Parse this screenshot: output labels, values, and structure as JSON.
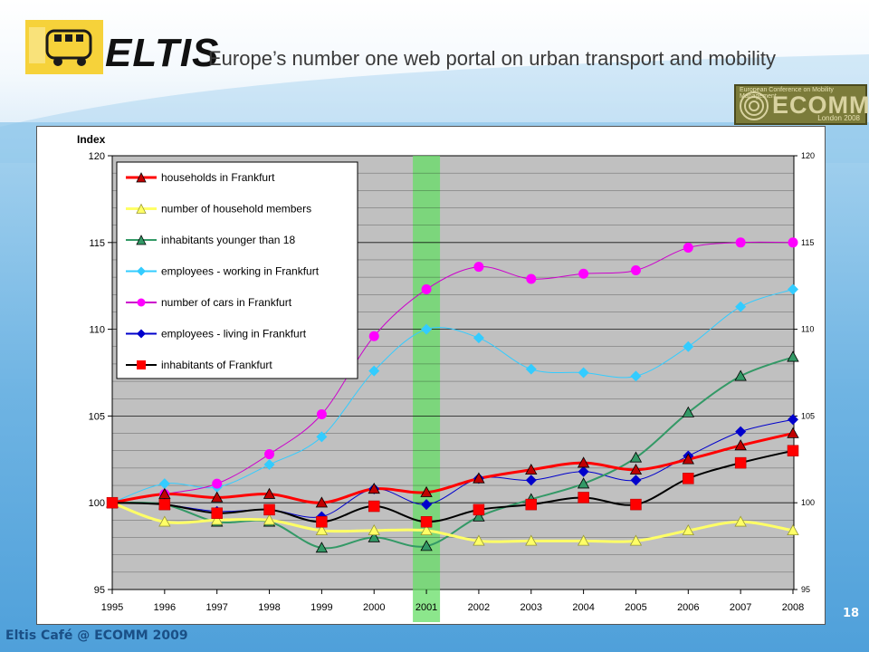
{
  "header": {
    "brand": "ELTIS",
    "tagline": "Europe’s number one web portal on urban transport and mobility",
    "logo_icon": "bus-icon"
  },
  "ecomm": {
    "name": "ECOMM",
    "top_text": "European Conference on Mobility Management",
    "sub_text": "London 2008"
  },
  "footer": {
    "text": "Eltis Café @ ECOMM 2009",
    "page_number": "18"
  },
  "colors": {
    "households": "#c00000",
    "household_members": "#ffff66",
    "young": "#339966",
    "employees_working": "#33ccff",
    "cars": "#cc00cc",
    "employees_living": "#0000cc",
    "inhabitants": "#000000",
    "highlight": "#66dd66"
  },
  "chart_data": {
    "type": "line",
    "title": "",
    "ylabel": "Index",
    "xlabel": "",
    "ylim": [
      95,
      120
    ],
    "yticks": [
      95,
      100,
      105,
      110,
      115,
      120
    ],
    "y2ticks": [
      95,
      100,
      105,
      110,
      115,
      120
    ],
    "grid": "horizontal minor",
    "legend_position": "top-left",
    "highlight_category": "2001",
    "categories": [
      "1995",
      "1996",
      "1997",
      "1998",
      "1999",
      "2000",
      "2001",
      "2002",
      "2003",
      "2004",
      "2005",
      "2006",
      "2007",
      "2008"
    ],
    "series": [
      {
        "key": "households",
        "name": "households in Frankfurt",
        "marker": "triangle",
        "color": "#c00000",
        "line": "#ff0000",
        "width": 3,
        "values": [
          100,
          100.5,
          100.3,
          100.5,
          100.0,
          100.8,
          100.6,
          101.4,
          101.9,
          102.3,
          101.9,
          102.5,
          103.3,
          104.0
        ]
      },
      {
        "key": "household_members",
        "name": "number of  household members",
        "marker": "triangle-open",
        "color": "#ffff66",
        "line": "#ffff66",
        "width": 3,
        "values": [
          100,
          98.9,
          99.0,
          99.0,
          98.4,
          98.4,
          98.4,
          97.8,
          97.8,
          97.8,
          97.8,
          98.4,
          98.9,
          98.4
        ]
      },
      {
        "key": "young",
        "name": "inhabitants younger than 18",
        "marker": "triangle",
        "color": "#339966",
        "line": "#339966",
        "width": 2,
        "values": [
          100,
          99.9,
          98.9,
          98.9,
          97.4,
          98.0,
          97.5,
          99.2,
          100.2,
          101.1,
          102.6,
          105.2,
          107.3,
          108.4
        ]
      },
      {
        "key": "employees_working",
        "name": "employees - working in Frankfurt",
        "marker": "diamond",
        "color": "#33ccff",
        "line": "#33ccff",
        "width": 1,
        "values": [
          100,
          101.1,
          100.9,
          102.2,
          103.8,
          107.6,
          110.0,
          109.5,
          107.7,
          107.5,
          107.3,
          109.0,
          111.3,
          112.3
        ]
      },
      {
        "key": "cars",
        "name": "number of cars  in Frankfurt",
        "marker": "circle",
        "color": "#ff00ff",
        "line": "#cc00cc",
        "width": 1,
        "values": [
          100,
          100.5,
          101.1,
          102.8,
          105.1,
          109.6,
          112.3,
          113.6,
          112.9,
          113.2,
          113.4,
          114.7,
          115.0,
          115.0
        ]
      },
      {
        "key": "employees_living",
        "name": "employees - living in Frankfurt",
        "marker": "diamond",
        "color": "#0000cc",
        "line": "#0000cc",
        "width": 1,
        "values": [
          100,
          99.9,
          99.5,
          99.6,
          99.2,
          100.8,
          99.9,
          101.4,
          101.3,
          101.8,
          101.3,
          102.7,
          104.1,
          104.8
        ]
      },
      {
        "key": "inhabitants",
        "name": "inhabitants of Frankfurt",
        "marker": "square",
        "color": "#ff0000",
        "line": "#000000",
        "width": 2,
        "values": [
          100,
          99.9,
          99.4,
          99.6,
          98.9,
          99.8,
          98.9,
          99.6,
          99.9,
          100.3,
          99.9,
          101.4,
          102.3,
          103.0
        ]
      }
    ]
  }
}
